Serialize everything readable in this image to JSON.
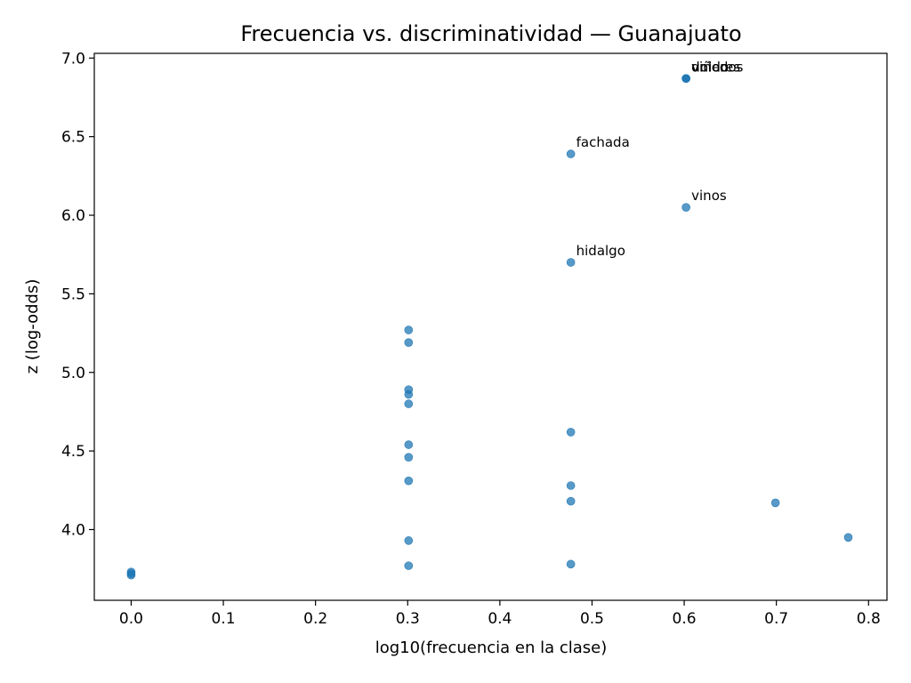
{
  "chart_data": {
    "type": "scatter",
    "title": "Frecuencia vs. discriminatividad — Guanajuato",
    "xlabel": "log10(frecuencia en la clase)",
    "ylabel": "z (log-odds)",
    "xlim": [
      -0.04,
      0.82
    ],
    "ylim": [
      3.55,
      7.03
    ],
    "xticks": [
      0.0,
      0.1,
      0.2,
      0.3,
      0.4,
      0.5,
      0.6,
      0.7,
      0.8
    ],
    "xtick_labels": [
      "0.0",
      "0.1",
      "0.2",
      "0.3",
      "0.4",
      "0.5",
      "0.6",
      "0.7",
      "0.8"
    ],
    "yticks": [
      4.0,
      4.5,
      5.0,
      5.5,
      6.0,
      6.5,
      7.0
    ],
    "ytick_labels": [
      "4.0",
      "4.5",
      "5.0",
      "5.5",
      "6.0",
      "6.5",
      "7.0"
    ],
    "grid": false,
    "point_color": "#1f77b4",
    "points": [
      {
        "x": 0.602,
        "y": 6.87
      },
      {
        "x": 0.602,
        "y": 6.87
      },
      {
        "x": 0.602,
        "y": 6.87
      },
      {
        "x": 0.477,
        "y": 6.39
      },
      {
        "x": 0.602,
        "y": 6.05
      },
      {
        "x": 0.477,
        "y": 5.7
      },
      {
        "x": 0.301,
        "y": 5.27
      },
      {
        "x": 0.301,
        "y": 5.19
      },
      {
        "x": 0.301,
        "y": 4.89
      },
      {
        "x": 0.301,
        "y": 4.86
      },
      {
        "x": 0.301,
        "y": 4.8
      },
      {
        "x": 0.301,
        "y": 4.54
      },
      {
        "x": 0.301,
        "y": 4.46
      },
      {
        "x": 0.301,
        "y": 4.31
      },
      {
        "x": 0.301,
        "y": 3.93
      },
      {
        "x": 0.301,
        "y": 3.77
      },
      {
        "x": 0.477,
        "y": 4.62
      },
      {
        "x": 0.477,
        "y": 4.28
      },
      {
        "x": 0.477,
        "y": 4.18
      },
      {
        "x": 0.477,
        "y": 3.78
      },
      {
        "x": 0.699,
        "y": 4.17
      },
      {
        "x": 0.778,
        "y": 3.95
      },
      {
        "x": 0.0,
        "y": 3.73
      },
      {
        "x": 0.0,
        "y": 3.72
      },
      {
        "x": 0.0,
        "y": 3.71
      }
    ],
    "annotations": [
      {
        "text": "viñedos",
        "x": 0.602,
        "y": 6.87
      },
      {
        "text": "dolores",
        "x": 0.602,
        "y": 6.87
      },
      {
        "text": "unido",
        "x": 0.602,
        "y": 6.87
      },
      {
        "text": "fachada",
        "x": 0.477,
        "y": 6.39
      },
      {
        "text": "vinos",
        "x": 0.602,
        "y": 6.05
      },
      {
        "text": "hidalgo",
        "x": 0.477,
        "y": 5.7
      }
    ]
  }
}
